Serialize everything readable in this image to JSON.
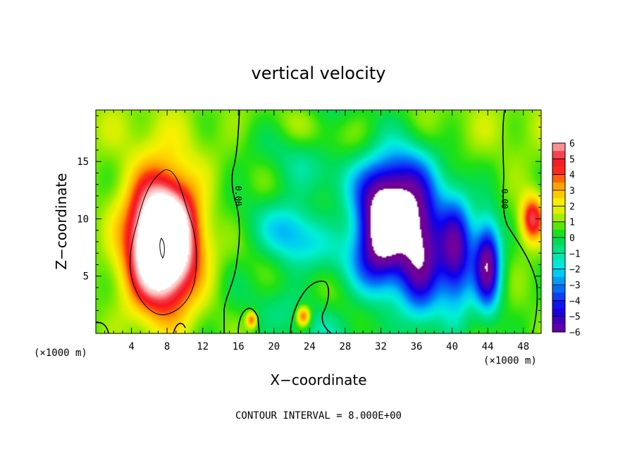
{
  "chart_data": {
    "type": "heatmap",
    "title": "vertical velocity",
    "xlabel": "X−coordinate",
    "ylabel": "Z−coordinate",
    "x_unit_left": "(×1000 m)",
    "x_unit_right": "(×1000 m)",
    "xlim": [
      0,
      50
    ],
    "ylim": [
      0,
      19.5
    ],
    "x_ticks": [
      "4",
      "8",
      "12",
      "16",
      "20",
      "24",
      "28",
      "32",
      "36",
      "40",
      "44",
      "48"
    ],
    "x_tick_values": [
      4,
      8,
      12,
      16,
      20,
      24,
      28,
      32,
      36,
      40,
      44,
      48
    ],
    "y_ticks": [
      "5",
      "10",
      "15"
    ],
    "y_tick_values": [
      5,
      10,
      15
    ],
    "colorbar": {
      "labels": [
        "6",
        "5",
        "4",
        "3",
        "2",
        "1",
        "0",
        "−1",
        "−2",
        "−3",
        "−4",
        "−5",
        "−6"
      ],
      "values": [
        6,
        5,
        4,
        3,
        2,
        1,
        0,
        -1,
        -2,
        -3,
        -4,
        -5,
        -6
      ]
    },
    "contour_label": "0.00",
    "footer": "CONTOUR INTERVAL = 8.000E+00",
    "features": [
      {
        "type": "updraft",
        "x": 7.5,
        "z": 8.0,
        "sx": 3.8,
        "sz": 5.5,
        "peak": 11
      },
      {
        "type": "updraft",
        "x": 49.0,
        "z": 10.0,
        "sx": 1.3,
        "sz": 2.0,
        "peak": 4.5
      },
      {
        "type": "updraft",
        "x": 17.5,
        "z": 1.2,
        "sx": 0.6,
        "sz": 0.7,
        "peak": 3.5
      },
      {
        "type": "updraft",
        "x": 23.3,
        "z": 1.5,
        "sx": 0.8,
        "sz": 0.9,
        "peak": 4.2
      },
      {
        "type": "downdraft",
        "x": 32.0,
        "z": 8.5,
        "sx": 3.0,
        "sz": 4.5,
        "peak": -7.5
      },
      {
        "type": "downdraft",
        "x": 36.5,
        "z": 7.0,
        "sx": 2.5,
        "sz": 5.5,
        "peak": -6.5
      },
      {
        "type": "downdraft",
        "x": 40.5,
        "z": 7.0,
        "sx": 2.0,
        "sz": 5.0,
        "peak": -6.0
      },
      {
        "type": "downdraft",
        "x": 44.0,
        "z": 6.0,
        "sx": 1.5,
        "sz": 4.0,
        "peak": -6.8
      },
      {
        "type": "downdraft",
        "x": 34.0,
        "z": 13.0,
        "sx": 4.0,
        "sz": 4.0,
        "peak": -4.5
      },
      {
        "type": "downdraft",
        "x": 22.0,
        "z": 9.0,
        "sx": 3.0,
        "sz": 3.0,
        "peak": -2.0
      }
    ]
  }
}
